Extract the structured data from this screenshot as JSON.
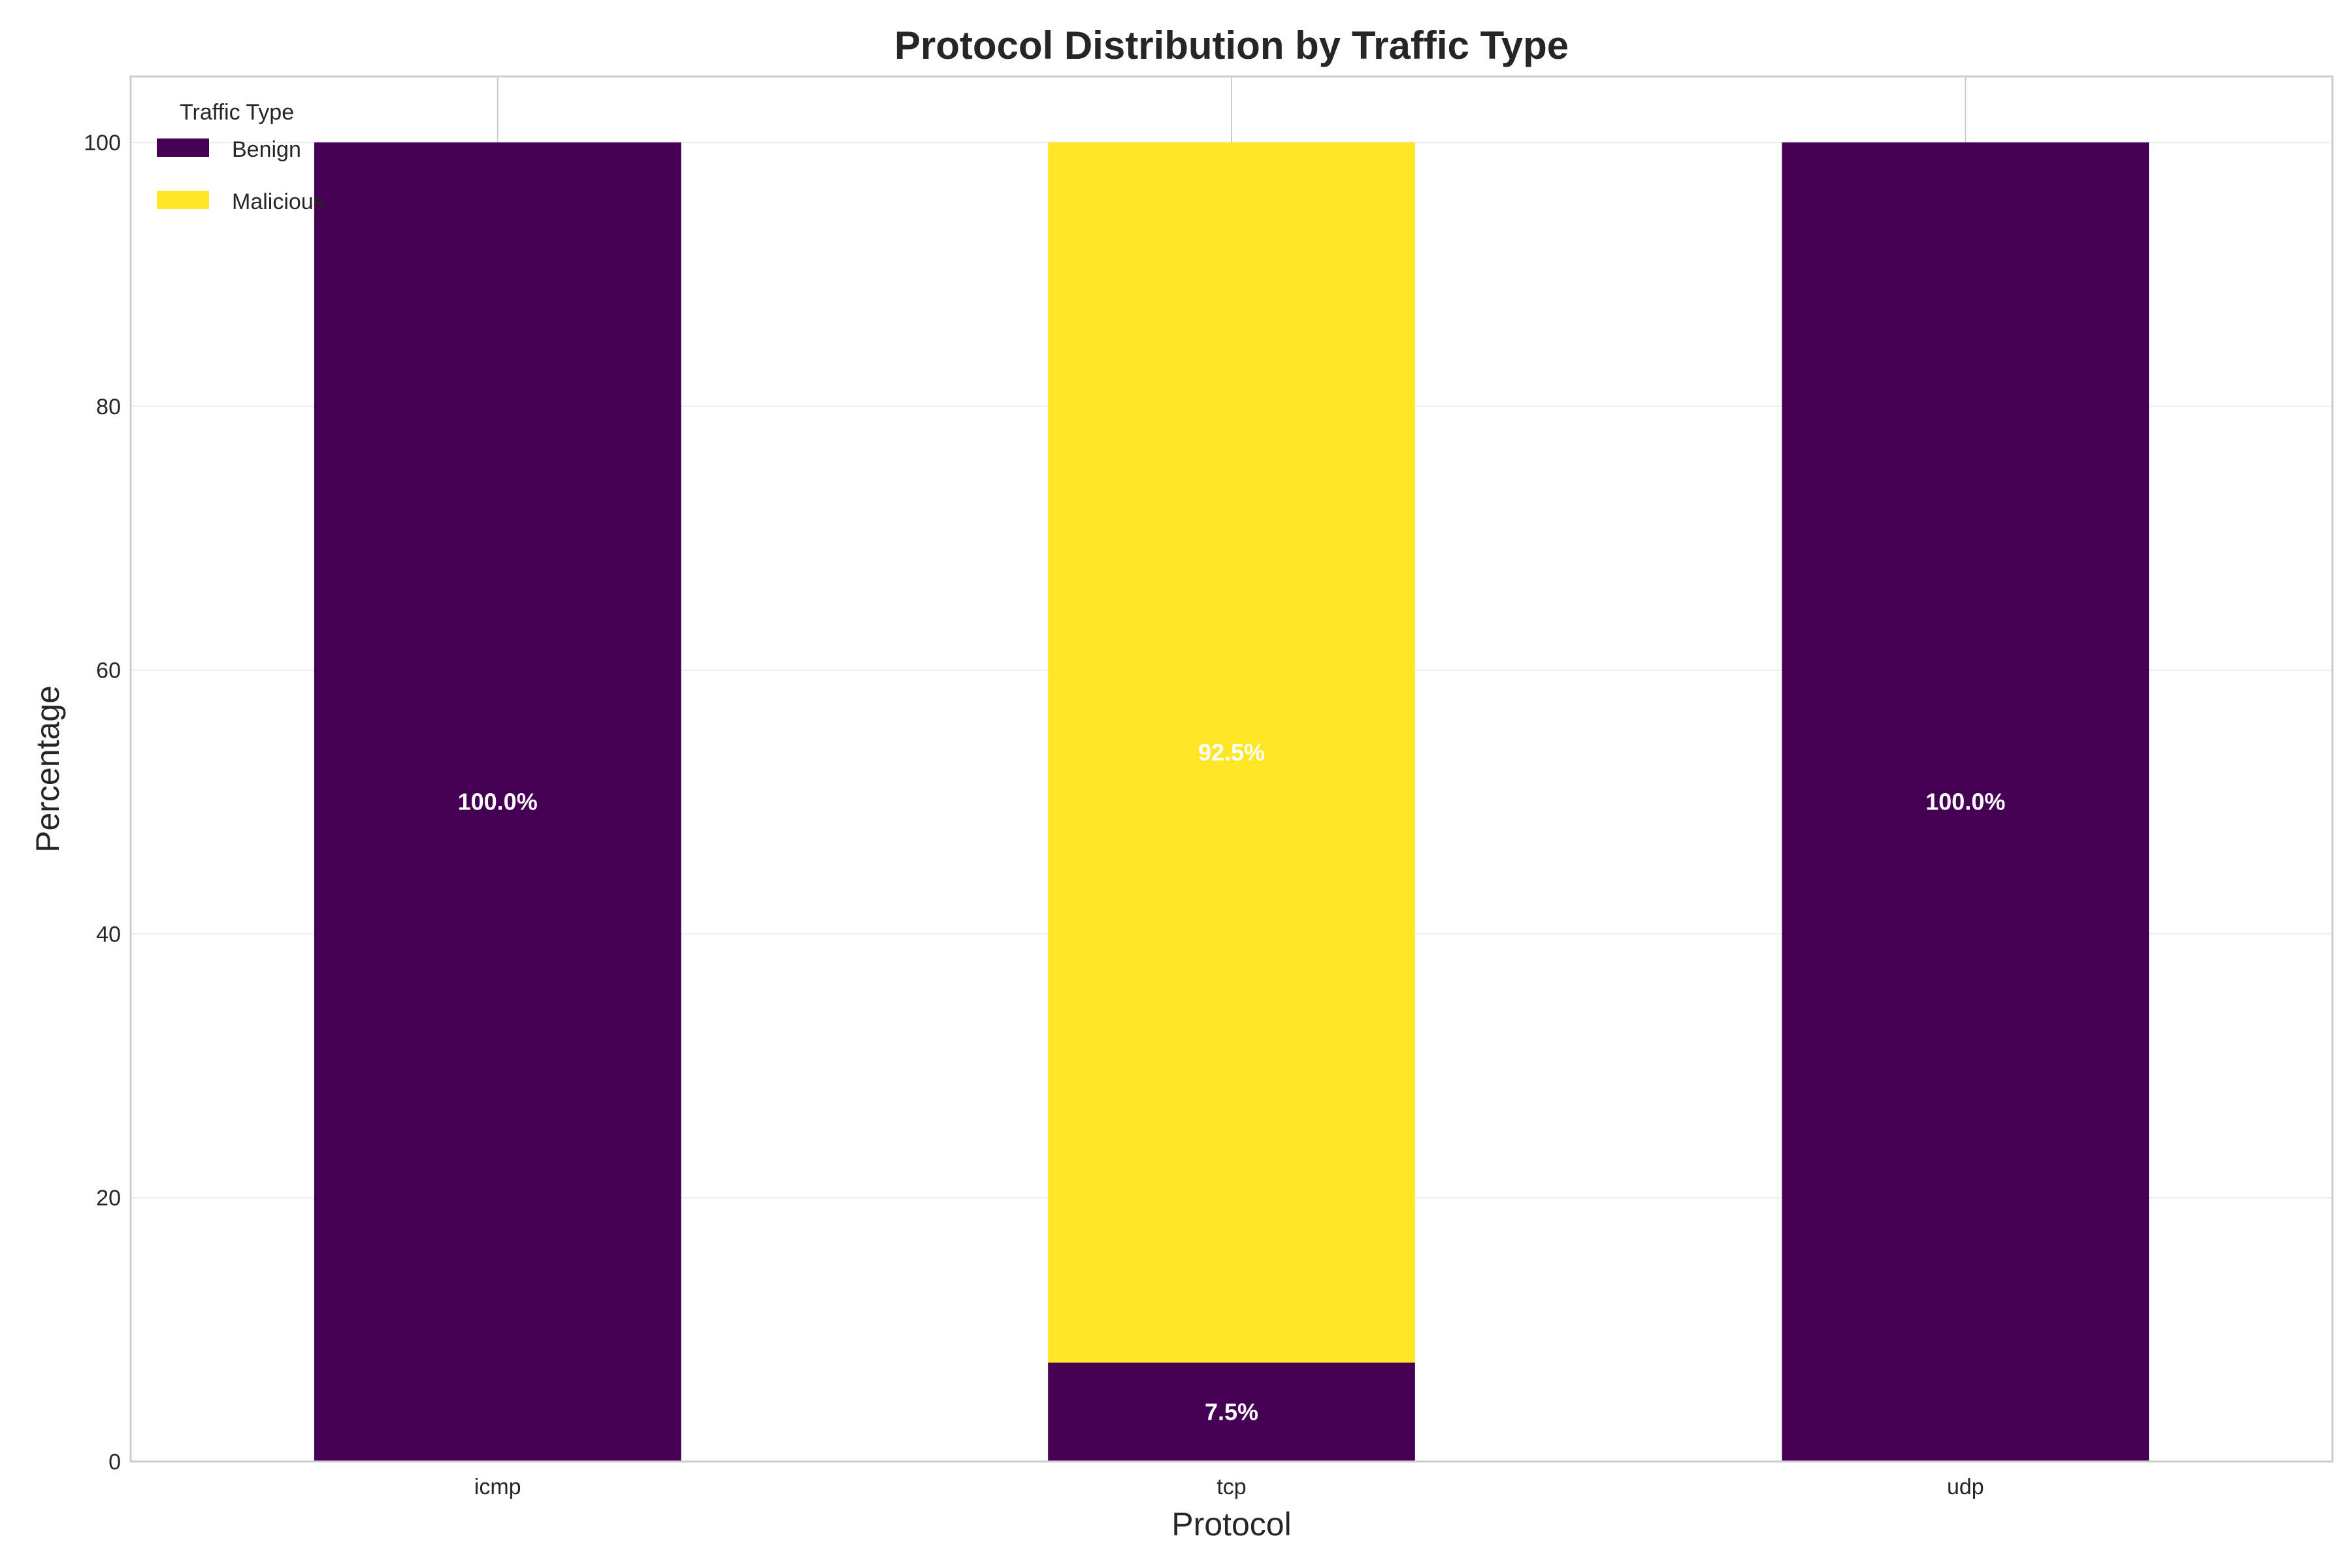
{
  "chart_data": {
    "type": "bar",
    "stacked": true,
    "title": "Protocol Distribution by Traffic Type",
    "xlabel": "Protocol",
    "ylabel": "Percentage",
    "categories": [
      "icmp",
      "tcp",
      "udp"
    ],
    "ylim": [
      0,
      105
    ],
    "yticks": [
      0,
      20,
      40,
      60,
      80,
      100
    ],
    "grid": true,
    "legend": {
      "title": "Traffic Type",
      "placement": "top-left"
    },
    "series": [
      {
        "name": "Benign",
        "color": "#440154",
        "values": [
          100.0,
          7.5,
          100.0
        ],
        "labels": [
          "100.0%",
          "7.5%",
          "100.0%"
        ]
      },
      {
        "name": "Malicious",
        "color": "#fde725",
        "values": [
          0.0,
          92.5,
          0.0
        ],
        "labels": [
          "",
          "92.5%",
          ""
        ]
      }
    ]
  }
}
